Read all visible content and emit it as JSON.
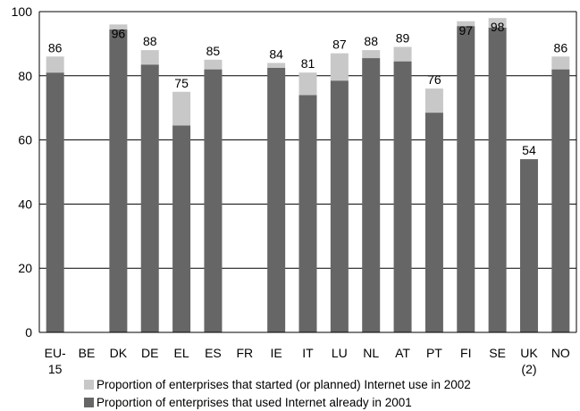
{
  "chart_data": {
    "type": "bar",
    "stacked": true,
    "categories": [
      "EU-15",
      "BE",
      "DK",
      "DE",
      "EL",
      "ES",
      "FR",
      "IE",
      "IT",
      "LU",
      "NL",
      "AT",
      "PT",
      "FI",
      "SE",
      "UK (2)",
      "NO"
    ],
    "category_lines": [
      [
        "EU-",
        "15"
      ],
      [
        "BE"
      ],
      [
        "DK"
      ],
      [
        "DE"
      ],
      [
        "EL"
      ],
      [
        "ES"
      ],
      [
        "FR"
      ],
      [
        "IE"
      ],
      [
        "IT"
      ],
      [
        "LU"
      ],
      [
        "NL"
      ],
      [
        "AT"
      ],
      [
        "PT"
      ],
      [
        "FI"
      ],
      [
        "SE"
      ],
      [
        "UK",
        "(2)"
      ],
      [
        "NO"
      ]
    ],
    "series": [
      {
        "name": "Proportion of enterprises that used Internet already in 2001",
        "color": "#666666",
        "values": [
          81,
          null,
          94.5,
          83.5,
          64.5,
          82,
          null,
          82.5,
          74,
          78.5,
          85.5,
          84.5,
          68.5,
          95.5,
          95,
          54,
          82
        ]
      },
      {
        "name": "Proportion of enterprises that started (or planned) Internet use in 2002",
        "color": "#c8c8c8",
        "values": [
          5,
          null,
          1.5,
          4.5,
          10.5,
          3,
          null,
          1.5,
          7,
          8.5,
          2.5,
          4.5,
          7.5,
          1.5,
          3,
          0,
          4
        ]
      }
    ],
    "data_labels": [
      "86",
      "",
      "96",
      "88",
      "75",
      "85",
      "",
      "84",
      "81",
      "87",
      "88",
      "89",
      "76",
      "97",
      "98",
      "54",
      "86"
    ],
    "data_label_inside": [
      false,
      false,
      true,
      false,
      false,
      false,
      false,
      false,
      false,
      false,
      false,
      false,
      false,
      true,
      true,
      false,
      false
    ],
    "y_ticks": [
      "0",
      "20",
      "40",
      "60",
      "80",
      "100"
    ],
    "ylim": [
      0,
      100
    ],
    "title": "",
    "xlabel": "",
    "ylabel": "",
    "grid": true,
    "legend_position": "bottom"
  }
}
